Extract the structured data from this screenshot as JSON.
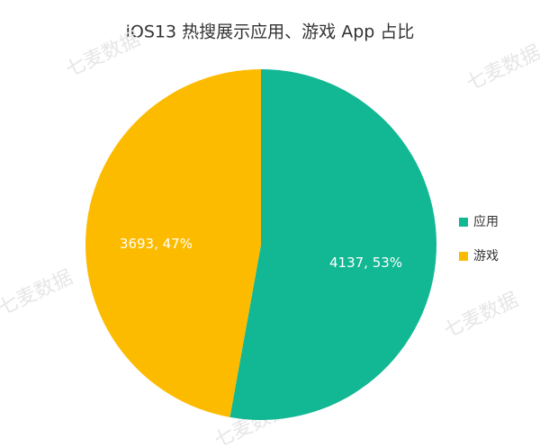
{
  "chart_data": {
    "type": "pie",
    "title": "iOS13 热搜展示应用、游戏 App 占比",
    "categories": [
      "应用",
      "游戏"
    ],
    "values": [
      4137,
      3693
    ],
    "value_labels": [
      "4137, 53%",
      "3693, 47%"
    ],
    "colors": [
      "#12b794",
      "#fdbb00"
    ],
    "legend": "right",
    "watermark": "七麦数据"
  }
}
